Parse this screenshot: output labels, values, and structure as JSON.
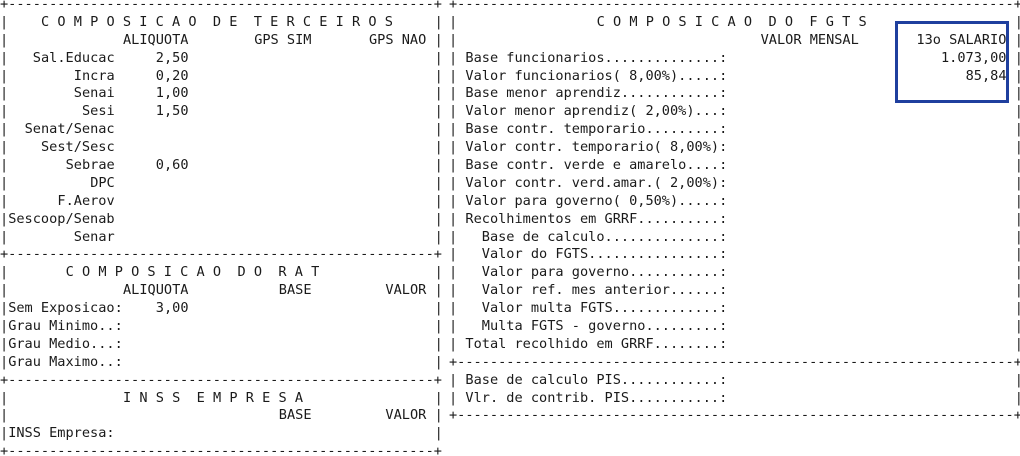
{
  "glyphs": {
    "pipe": "|"
  },
  "highlight": {
    "border_color": "#1f3f9e"
  },
  "left": {
    "hline": "+----------------------------------------------------+",
    "lines": [
      {
        "kind": "hline"
      },
      {
        "kind": "cells",
        "cells": [
          {
            "col": "title_terceiros",
            "text": "C O M P O S I C A O  D E  T E R C E I R O S"
          }
        ]
      },
      {
        "kind": "cells",
        "cells": [
          {
            "col": "aliquota",
            "text": "ALIQUOTA"
          },
          {
            "col": "gps_sim",
            "text": "GPS SIM"
          },
          {
            "col": "gps_nao",
            "text": "GPS NAO"
          }
        ]
      },
      {
        "kind": "cells",
        "cells": [
          {
            "col": "label",
            "text": "Sal.Educac"
          },
          {
            "col": "aliquota",
            "text": "2,50"
          }
        ]
      },
      {
        "kind": "cells",
        "cells": [
          {
            "col": "label",
            "text": "Incra"
          },
          {
            "col": "aliquota",
            "text": "0,20"
          }
        ]
      },
      {
        "kind": "cells",
        "cells": [
          {
            "col": "label",
            "text": "Senai"
          },
          {
            "col": "aliquota",
            "text": "1,00"
          }
        ]
      },
      {
        "kind": "cells",
        "cells": [
          {
            "col": "label",
            "text": "Sesi"
          },
          {
            "col": "aliquota",
            "text": "1,50"
          }
        ]
      },
      {
        "kind": "cells",
        "cells": [
          {
            "col": "label",
            "text": "Senat/Senac"
          }
        ]
      },
      {
        "kind": "cells",
        "cells": [
          {
            "col": "label",
            "text": "Sest/Sesc"
          }
        ]
      },
      {
        "kind": "cells",
        "cells": [
          {
            "col": "label",
            "text": "Sebrae"
          },
          {
            "col": "aliquota",
            "text": "0,60"
          }
        ]
      },
      {
        "kind": "cells",
        "cells": [
          {
            "col": "label",
            "text": "DPC"
          }
        ]
      },
      {
        "kind": "cells",
        "cells": [
          {
            "col": "label",
            "text": "F.Aerov"
          }
        ]
      },
      {
        "kind": "cells",
        "cells": [
          {
            "col": "label",
            "text": "Sescoop/Senab"
          }
        ]
      },
      {
        "kind": "cells",
        "cells": [
          {
            "col": "label",
            "text": "Senar"
          }
        ]
      },
      {
        "kind": "hline"
      },
      {
        "kind": "cells",
        "cells": [
          {
            "col": "title_rat",
            "text": "C O M P O S I C A O  D O  R A T"
          }
        ]
      },
      {
        "kind": "cells",
        "cells": [
          {
            "col": "aliquota",
            "text": "ALIQUOTA"
          },
          {
            "col": "base",
            "text": "BASE"
          },
          {
            "col": "valor",
            "text": "VALOR"
          }
        ]
      },
      {
        "kind": "cells",
        "cells": [
          {
            "col": "lbl",
            "text": "Sem Exposicao:"
          },
          {
            "col": "aliquota",
            "text": "3,00"
          }
        ]
      },
      {
        "kind": "cells",
        "cells": [
          {
            "col": "lbl",
            "text": "Grau Minimo..:"
          }
        ]
      },
      {
        "kind": "cells",
        "cells": [
          {
            "col": "lbl",
            "text": "Grau Medio...:"
          }
        ]
      },
      {
        "kind": "cells",
        "cells": [
          {
            "col": "lbl",
            "text": "Grau Maximo..:"
          }
        ]
      },
      {
        "kind": "hline"
      },
      {
        "kind": "cells",
        "cells": [
          {
            "col": "title_inss",
            "text": "I N S S  E M P R E S A"
          }
        ]
      },
      {
        "kind": "cells",
        "cells": [
          {
            "col": "base",
            "text": "BASE"
          },
          {
            "col": "valor",
            "text": "VALOR"
          }
        ]
      },
      {
        "kind": "cells",
        "cells": [
          {
            "col": "lbl",
            "text": "INSS Empresa:"
          }
        ]
      },
      {
        "kind": "hline"
      }
    ]
  },
  "right": {
    "hline": "+--------------------------------------------------------------------+",
    "lines": [
      {
        "kind": "hline"
      },
      {
        "kind": "cells",
        "cells": [
          {
            "col": "title_fgts",
            "text": "C O M P O S I C A O  D O  F G T S"
          }
        ]
      },
      {
        "kind": "cells",
        "cells": [
          {
            "col": "mensal",
            "text": "VALOR MENSAL"
          },
          {
            "col": "salario",
            "text": "13o SALARIO"
          }
        ]
      },
      {
        "kind": "cells",
        "cells": [
          {
            "col": "label",
            "text": "Base funcionarios..............:"
          },
          {
            "col": "val13",
            "text": "1.073,00"
          }
        ]
      },
      {
        "kind": "cells",
        "cells": [
          {
            "col": "label",
            "text": "Valor funcionarios( 8,00%).....:"
          },
          {
            "col": "val13",
            "text": "85,84"
          }
        ]
      },
      {
        "kind": "cells",
        "cells": [
          {
            "col": "label",
            "text": "Base menor aprendiz............:"
          }
        ]
      },
      {
        "kind": "cells",
        "cells": [
          {
            "col": "label",
            "text": "Valor menor aprendiz( 2,00%)...:"
          }
        ]
      },
      {
        "kind": "cells",
        "cells": [
          {
            "col": "label",
            "text": "Base contr. temporario.........:"
          }
        ]
      },
      {
        "kind": "cells",
        "cells": [
          {
            "col": "label",
            "text": "Valor contr. temporario( 8,00%):"
          }
        ]
      },
      {
        "kind": "cells",
        "cells": [
          {
            "col": "label",
            "text": "Base contr. verde e amarelo....:"
          }
        ]
      },
      {
        "kind": "cells",
        "cells": [
          {
            "col": "label",
            "text": "Valor contr. verd.amar.( 2,00%):"
          }
        ]
      },
      {
        "kind": "cells",
        "cells": [
          {
            "col": "label",
            "text": "Valor para governo( 0,50%).....:"
          }
        ]
      },
      {
        "kind": "cells",
        "cells": [
          {
            "col": "label",
            "text": "Recolhimentos em GRRF..........:"
          }
        ]
      },
      {
        "kind": "cells",
        "cells": [
          {
            "col": "label",
            "text": "  Base de calculo..............:"
          }
        ]
      },
      {
        "kind": "cells",
        "cells": [
          {
            "col": "label",
            "text": "  Valor do FGTS................:"
          }
        ]
      },
      {
        "kind": "cells",
        "cells": [
          {
            "col": "label",
            "text": "  Valor para governo...........:"
          }
        ]
      },
      {
        "kind": "cells",
        "cells": [
          {
            "col": "label",
            "text": "  Valor ref. mes anterior......:"
          }
        ]
      },
      {
        "kind": "cells",
        "cells": [
          {
            "col": "label",
            "text": "  Valor multa FGTS.............:"
          }
        ]
      },
      {
        "kind": "cells",
        "cells": [
          {
            "col": "label",
            "text": "  Multa FGTS - governo.........:"
          }
        ]
      },
      {
        "kind": "cells",
        "cells": [
          {
            "col": "label",
            "text": "Total recolhido em GRRF........:"
          }
        ]
      },
      {
        "kind": "hline"
      },
      {
        "kind": "cells",
        "cells": [
          {
            "col": "label",
            "text": "Base de calculo PIS............:"
          }
        ]
      },
      {
        "kind": "cells",
        "cells": [
          {
            "col": "label",
            "text": "Vlr. de contrib. PIS...........:"
          }
        ]
      },
      {
        "kind": "hline"
      }
    ]
  }
}
